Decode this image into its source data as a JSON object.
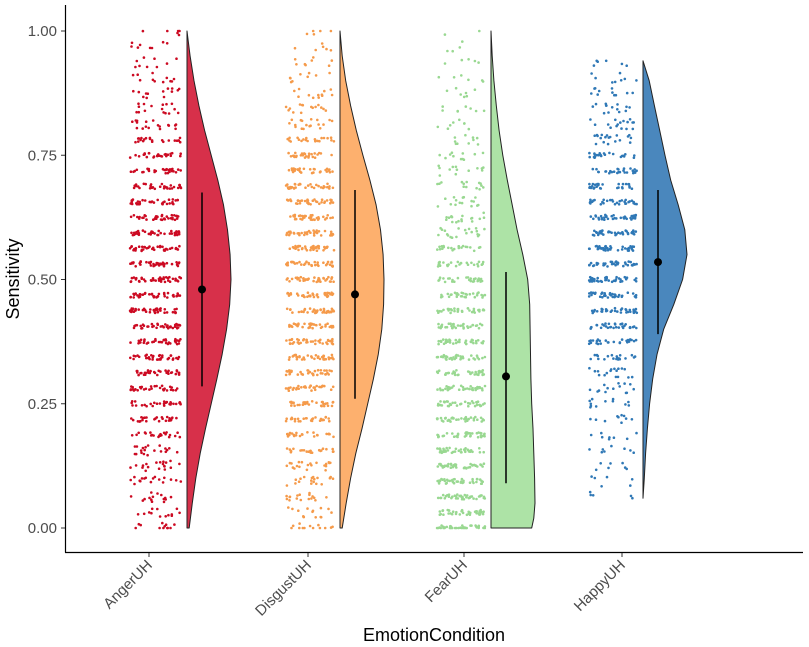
{
  "chart_data": {
    "type": "raincloud",
    "title": "",
    "xlabel": "EmotionCondition",
    "ylabel": "Sensitivity",
    "ylim": [
      -0.05,
      1.05
    ],
    "yticks": [
      0.0,
      0.25,
      0.5,
      0.75,
      1.0
    ],
    "ytick_labels": [
      "0.00",
      "0.25",
      "0.50",
      "0.75",
      "1.00"
    ],
    "grid": false,
    "legend": "none",
    "categories": [
      "AngerUH",
      "DisgustUH",
      "FearUH",
      "HappyUH"
    ],
    "series": [
      {
        "name": "AngerUH",
        "color": "#d7301f",
        "point_color": "#cc0a22",
        "violin_color": "#d7304a",
        "range": [
          0.0,
          1.0
        ],
        "mean": 0.48,
        "interval": [
          0.285,
          0.675
        ],
        "density": [
          [
            0.0,
            0.05
          ],
          [
            0.05,
            0.12
          ],
          [
            0.1,
            0.2
          ],
          [
            0.15,
            0.3
          ],
          [
            0.2,
            0.42
          ],
          [
            0.25,
            0.55
          ],
          [
            0.3,
            0.68
          ],
          [
            0.35,
            0.8
          ],
          [
            0.4,
            0.9
          ],
          [
            0.45,
            0.97
          ],
          [
            0.5,
            1.0
          ],
          [
            0.55,
            0.98
          ],
          [
            0.6,
            0.92
          ],
          [
            0.65,
            0.83
          ],
          [
            0.7,
            0.7
          ],
          [
            0.75,
            0.55
          ],
          [
            0.8,
            0.4
          ],
          [
            0.85,
            0.27
          ],
          [
            0.9,
            0.16
          ],
          [
            0.95,
            0.07
          ],
          [
            1.0,
            0.0
          ]
        ]
      },
      {
        "name": "DisgustUH",
        "color": "#fdae6b",
        "point_color": "#f59a4a",
        "violin_color": "#fdb06e",
        "range": [
          0.0,
          1.0
        ],
        "mean": 0.47,
        "interval": [
          0.26,
          0.68
        ],
        "density": [
          [
            0.0,
            0.05
          ],
          [
            0.05,
            0.14
          ],
          [
            0.1,
            0.24
          ],
          [
            0.15,
            0.36
          ],
          [
            0.2,
            0.5
          ],
          [
            0.25,
            0.63
          ],
          [
            0.3,
            0.76
          ],
          [
            0.35,
            0.87
          ],
          [
            0.4,
            0.95
          ],
          [
            0.45,
            0.99
          ],
          [
            0.5,
            1.0
          ],
          [
            0.55,
            0.98
          ],
          [
            0.6,
            0.92
          ],
          [
            0.65,
            0.82
          ],
          [
            0.7,
            0.68
          ],
          [
            0.75,
            0.52
          ],
          [
            0.8,
            0.37
          ],
          [
            0.85,
            0.24
          ],
          [
            0.9,
            0.13
          ],
          [
            0.95,
            0.05
          ],
          [
            1.0,
            0.0
          ]
        ]
      },
      {
        "name": "FearUH",
        "color": "#a1d99b",
        "point_color": "#99d891",
        "violin_color": "#ade3a6",
        "range": [
          0.0,
          1.0
        ],
        "mean": 0.305,
        "interval": [
          0.09,
          0.515
        ],
        "density": [
          [
            0.0,
            1.0
          ],
          [
            0.02,
            1.05
          ],
          [
            0.05,
            1.08
          ],
          [
            0.1,
            1.07
          ],
          [
            0.15,
            1.05
          ],
          [
            0.2,
            1.03
          ],
          [
            0.25,
            1.0
          ],
          [
            0.3,
            0.98
          ],
          [
            0.35,
            0.97
          ],
          [
            0.4,
            0.96
          ],
          [
            0.45,
            0.95
          ],
          [
            0.5,
            0.9
          ],
          [
            0.55,
            0.78
          ],
          [
            0.6,
            0.64
          ],
          [
            0.65,
            0.52
          ],
          [
            0.7,
            0.4
          ],
          [
            0.75,
            0.29
          ],
          [
            0.8,
            0.2
          ],
          [
            0.85,
            0.13
          ],
          [
            0.9,
            0.07
          ],
          [
            0.95,
            0.03
          ],
          [
            1.0,
            0.0
          ]
        ]
      },
      {
        "name": "HappyUH",
        "color": "#3182bd",
        "point_color": "#2f78b6",
        "violin_color": "#4a87bd",
        "range": [
          0.06,
          0.94
        ],
        "mean": 0.535,
        "interval": [
          0.39,
          0.68
        ],
        "density": [
          [
            0.06,
            0.0
          ],
          [
            0.1,
            0.03
          ],
          [
            0.15,
            0.06
          ],
          [
            0.2,
            0.1
          ],
          [
            0.25,
            0.15
          ],
          [
            0.3,
            0.22
          ],
          [
            0.35,
            0.32
          ],
          [
            0.4,
            0.47
          ],
          [
            0.45,
            0.7
          ],
          [
            0.5,
            0.9
          ],
          [
            0.55,
            1.0
          ],
          [
            0.6,
            0.95
          ],
          [
            0.65,
            0.8
          ],
          [
            0.7,
            0.63
          ],
          [
            0.75,
            0.5
          ],
          [
            0.8,
            0.38
          ],
          [
            0.85,
            0.26
          ],
          [
            0.9,
            0.14
          ],
          [
            0.94,
            0.0
          ]
        ]
      }
    ],
    "point_density_profiles": [
      [
        [
          0.0,
          0.25
        ],
        [
          0.1,
          0.4
        ],
        [
          0.2,
          0.55
        ],
        [
          0.3,
          0.8
        ],
        [
          0.4,
          0.95
        ],
        [
          0.5,
          1.0
        ],
        [
          0.6,
          0.95
        ],
        [
          0.7,
          0.85
        ],
        [
          0.8,
          0.45
        ],
        [
          0.9,
          0.25
        ],
        [
          1.0,
          0.1
        ]
      ],
      [
        [
          0.0,
          0.3
        ],
        [
          0.1,
          0.45
        ],
        [
          0.2,
          0.6
        ],
        [
          0.3,
          0.85
        ],
        [
          0.4,
          0.95
        ],
        [
          0.5,
          1.0
        ],
        [
          0.6,
          0.95
        ],
        [
          0.7,
          0.8
        ],
        [
          0.8,
          0.45
        ],
        [
          0.9,
          0.2
        ],
        [
          1.0,
          0.08
        ]
      ],
      [
        [
          0.0,
          1.0
        ],
        [
          0.1,
          1.0
        ],
        [
          0.2,
          0.95
        ],
        [
          0.3,
          0.9
        ],
        [
          0.4,
          0.85
        ],
        [
          0.5,
          0.7
        ],
        [
          0.6,
          0.45
        ],
        [
          0.7,
          0.3
        ],
        [
          0.8,
          0.18
        ],
        [
          0.9,
          0.1
        ],
        [
          1.0,
          0.03
        ]
      ],
      [
        [
          0.06,
          0.08
        ],
        [
          0.1,
          0.1
        ],
        [
          0.2,
          0.18
        ],
        [
          0.3,
          0.35
        ],
        [
          0.4,
          0.75
        ],
        [
          0.5,
          1.0
        ],
        [
          0.6,
          0.95
        ],
        [
          0.7,
          0.7
        ],
        [
          0.8,
          0.4
        ],
        [
          0.9,
          0.18
        ],
        [
          0.94,
          0.1
        ]
      ]
    ]
  }
}
